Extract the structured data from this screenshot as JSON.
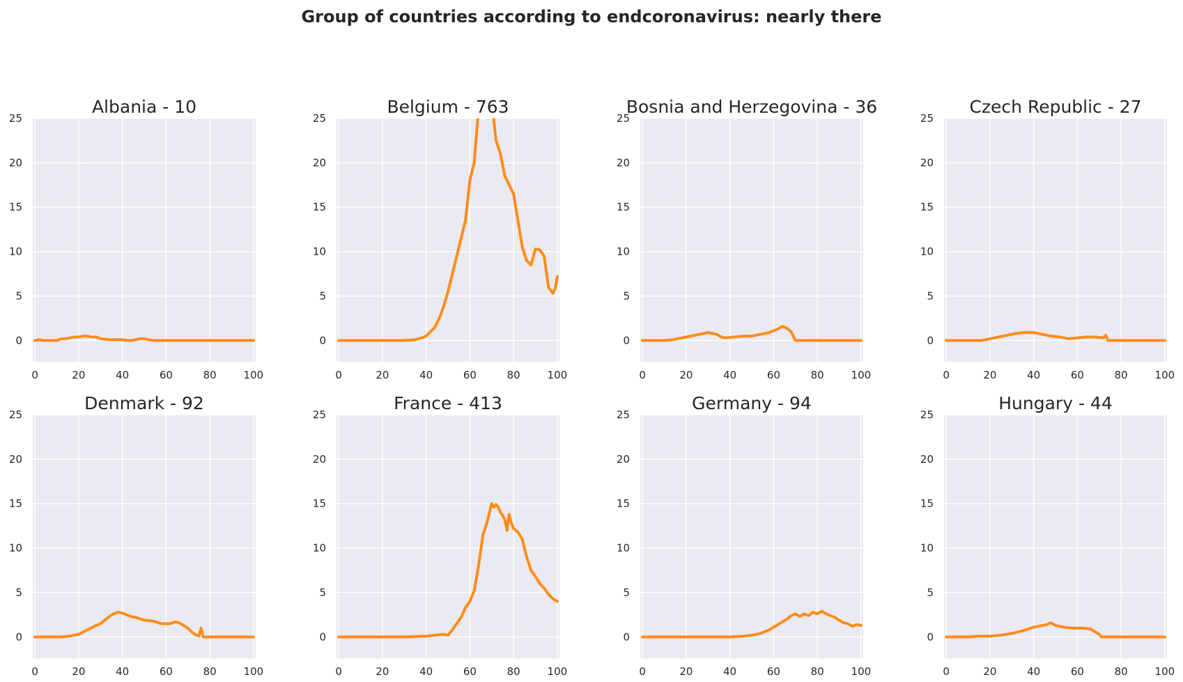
{
  "figure": {
    "title": "Group of countries according to endcoronavirus: nearly there",
    "line_color": "#ff8c1a",
    "background": "#eaeaf2"
  },
  "chart_data": [
    {
      "type": "line",
      "title": "Albania - 10",
      "xlim": [
        0,
        100
      ],
      "ylim": [
        0,
        25
      ],
      "xticks": [
        0,
        20,
        40,
        60,
        80,
        100
      ],
      "yticks": [
        0,
        5,
        10,
        15,
        20,
        25
      ],
      "x": [
        0,
        2,
        4,
        6,
        8,
        10,
        12,
        14,
        16,
        18,
        20,
        22,
        24,
        26,
        28,
        30,
        34,
        38,
        40,
        42,
        44,
        46,
        48,
        50,
        52,
        54,
        56,
        58,
        60,
        70,
        80,
        90,
        100
      ],
      "values": [
        0.0,
        0.1,
        0.0,
        0.0,
        0.0,
        0.0,
        0.2,
        0.2,
        0.3,
        0.4,
        0.4,
        0.5,
        0.5,
        0.4,
        0.4,
        0.2,
        0.1,
        0.1,
        0.1,
        0.0,
        0.0,
        0.1,
        0.2,
        0.2,
        0.1,
        0.0,
        0.0,
        0.0,
        0.0,
        0.0,
        0.0,
        0.0,
        0.0
      ]
    },
    {
      "type": "line",
      "title": "Belgium - 763",
      "xlim": [
        0,
        100
      ],
      "ylim": [
        0,
        25
      ],
      "xticks": [
        0,
        20,
        40,
        60,
        80,
        100
      ],
      "yticks": [
        0,
        5,
        10,
        15,
        20,
        25
      ],
      "x": [
        0,
        10,
        20,
        30,
        35,
        38,
        40,
        42,
        44,
        46,
        48,
        50,
        52,
        54,
        56,
        58,
        60,
        62,
        64,
        66,
        68,
        70,
        72,
        74,
        76,
        78,
        80,
        82,
        84,
        86,
        88,
        90,
        92,
        94,
        96,
        98,
        99,
        100
      ],
      "values": [
        0,
        0,
        0,
        0,
        0.1,
        0.3,
        0.5,
        1.0,
        1.5,
        2.5,
        3.8,
        5.5,
        7.5,
        9.5,
        11.5,
        13.5,
        18,
        20,
        26,
        30,
        29,
        27,
        22.5,
        21,
        18.5,
        17.5,
        16.5,
        13.5,
        10.5,
        9.0,
        8.5,
        10.3,
        10.2,
        9.5,
        6.0,
        5.3,
        5.8,
        7.2
      ]
    },
    {
      "type": "line",
      "title": "Bosnia and Herzegovina - 36",
      "xlim": [
        0,
        100
      ],
      "ylim": [
        0,
        25
      ],
      "xticks": [
        0,
        20,
        40,
        60,
        80,
        100
      ],
      "yticks": [
        0,
        5,
        10,
        15,
        20,
        25
      ],
      "x": [
        0,
        10,
        14,
        18,
        22,
        26,
        30,
        34,
        36,
        38,
        42,
        46,
        50,
        54,
        58,
        60,
        62,
        64,
        66,
        68,
        70,
        80,
        90,
        100
      ],
      "values": [
        0,
        0,
        0.1,
        0.3,
        0.5,
        0.7,
        0.9,
        0.7,
        0.4,
        0.3,
        0.4,
        0.5,
        0.5,
        0.7,
        0.9,
        1.1,
        1.3,
        1.6,
        1.4,
        1.0,
        0.0,
        0,
        0,
        0
      ]
    },
    {
      "type": "line",
      "title": "Czech Republic - 27",
      "xlim": [
        0,
        100
      ],
      "ylim": [
        0,
        25
      ],
      "xticks": [
        0,
        20,
        40,
        60,
        80,
        100
      ],
      "yticks": [
        0,
        5,
        10,
        15,
        20,
        25
      ],
      "x": [
        0,
        16,
        20,
        24,
        28,
        32,
        36,
        40,
        44,
        48,
        52,
        56,
        60,
        64,
        68,
        72,
        73,
        74,
        80,
        90,
        100
      ],
      "values": [
        0,
        0,
        0.2,
        0.4,
        0.6,
        0.8,
        0.9,
        0.9,
        0.7,
        0.5,
        0.4,
        0.2,
        0.3,
        0.4,
        0.4,
        0.3,
        0.6,
        0.0,
        0,
        0,
        0
      ]
    },
    {
      "type": "line",
      "title": "Denmark - 92",
      "xlim": [
        0,
        100
      ],
      "ylim": [
        0,
        25
      ],
      "xticks": [
        0,
        20,
        40,
        60,
        80,
        100
      ],
      "yticks": [
        0,
        5,
        10,
        15,
        20,
        25
      ],
      "x": [
        0,
        12,
        16,
        20,
        24,
        28,
        30,
        32,
        34,
        36,
        38,
        40,
        42,
        44,
        46,
        50,
        54,
        58,
        62,
        64,
        66,
        68,
        70,
        72,
        74,
        75,
        76,
        77,
        80,
        90,
        100
      ],
      "values": [
        0,
        0,
        0.1,
        0.3,
        0.8,
        1.3,
        1.5,
        1.9,
        2.3,
        2.6,
        2.8,
        2.7,
        2.5,
        2.3,
        2.2,
        1.9,
        1.8,
        1.5,
        1.5,
        1.7,
        1.6,
        1.3,
        1.0,
        0.5,
        0.2,
        0.1,
        1.0,
        0.0,
        0,
        0,
        0
      ]
    },
    {
      "type": "line",
      "title": "France - 413",
      "xlim": [
        0,
        100
      ],
      "ylim": [
        0,
        25
      ],
      "xticks": [
        0,
        20,
        40,
        60,
        80,
        100
      ],
      "yticks": [
        0,
        5,
        10,
        15,
        20,
        25
      ],
      "x": [
        0,
        10,
        20,
        30,
        40,
        44,
        48,
        50,
        52,
        54,
        56,
        58,
        60,
        62,
        64,
        66,
        68,
        70,
        71,
        72,
        73,
        74,
        75,
        76,
        77,
        78,
        79,
        80,
        81,
        82,
        84,
        86,
        88,
        90,
        92,
        94,
        96,
        98,
        100
      ],
      "values": [
        0,
        0,
        0,
        0,
        0.1,
        0.2,
        0.3,
        0.2,
        0.8,
        1.5,
        2.2,
        3.3,
        4.0,
        5.2,
        8.0,
        11.5,
        13.0,
        15.0,
        14.6,
        14.9,
        14.6,
        14.0,
        13.7,
        13.2,
        12.0,
        13.8,
        12.8,
        12.2,
        12.0,
        11.8,
        11.0,
        9.0,
        7.5,
        6.8,
        6.0,
        5.5,
        4.8,
        4.3,
        4.0
      ]
    },
    {
      "type": "line",
      "title": "Germany - 94",
      "xlim": [
        0,
        100
      ],
      "ylim": [
        0,
        25
      ],
      "xticks": [
        0,
        20,
        40,
        60,
        80,
        100
      ],
      "yticks": [
        0,
        5,
        10,
        15,
        20,
        25
      ],
      "x": [
        0,
        10,
        20,
        30,
        40,
        46,
        50,
        54,
        58,
        62,
        66,
        68,
        70,
        72,
        74,
        76,
        78,
        80,
        82,
        84,
        86,
        88,
        90,
        92,
        94,
        96,
        98,
        100
      ],
      "values": [
        0,
        0,
        0,
        0,
        0,
        0.1,
        0.2,
        0.4,
        0.8,
        1.4,
        2.0,
        2.4,
        2.6,
        2.3,
        2.6,
        2.4,
        2.8,
        2.6,
        2.9,
        2.6,
        2.4,
        2.2,
        1.9,
        1.6,
        1.5,
        1.2,
        1.4,
        1.3
      ]
    },
    {
      "type": "line",
      "title": "Hungary - 44",
      "xlim": [
        0,
        100
      ],
      "ylim": [
        0,
        25
      ],
      "xticks": [
        0,
        20,
        40,
        60,
        80,
        100
      ],
      "yticks": [
        0,
        5,
        10,
        15,
        20,
        25
      ],
      "x": [
        0,
        10,
        15,
        20,
        25,
        30,
        35,
        40,
        44,
        46,
        48,
        50,
        54,
        58,
        62,
        66,
        68,
        70,
        71,
        80,
        90,
        100
      ],
      "values": [
        0,
        0,
        0.1,
        0.1,
        0.2,
        0.4,
        0.7,
        1.1,
        1.3,
        1.4,
        1.6,
        1.3,
        1.1,
        1.0,
        1.0,
        0.9,
        0.6,
        0.3,
        0.0,
        0,
        0,
        0
      ]
    }
  ]
}
